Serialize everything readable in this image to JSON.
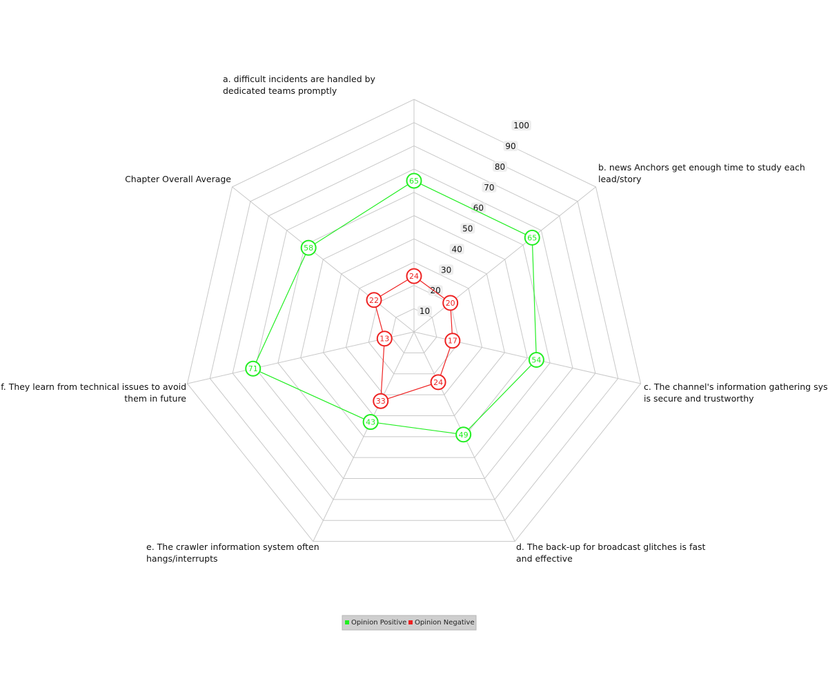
{
  "chart_data": {
    "type": "radar",
    "title": "",
    "categories": [
      "a. difficult incidents are handled by dedicated teams promptly",
      "b. news Anchors get enough time to study each lead/story",
      "c. The channel's information gathering system is secure and trustworthy",
      "d. The back-up for broadcast glitches is fast and effective",
      "e. The crawler information system often hangs/interrupts",
      "f. They learn from technical issues to avoid them in future",
      "Chapter Overall Average"
    ],
    "radial_ticks": [
      10,
      20,
      30,
      40,
      50,
      60,
      70,
      80,
      90,
      100
    ],
    "rlim": [
      0,
      100
    ],
    "grid": true,
    "legend_position": "bottom",
    "series": [
      {
        "name": "Opinion Positive",
        "color": "#22ee22",
        "values": [
          65,
          65,
          54,
          49,
          43,
          71,
          58
        ]
      },
      {
        "name": "Opinion Negative",
        "color": "#ee2222",
        "values": [
          24,
          20,
          17,
          24,
          33,
          13,
          22
        ]
      }
    ]
  }
}
